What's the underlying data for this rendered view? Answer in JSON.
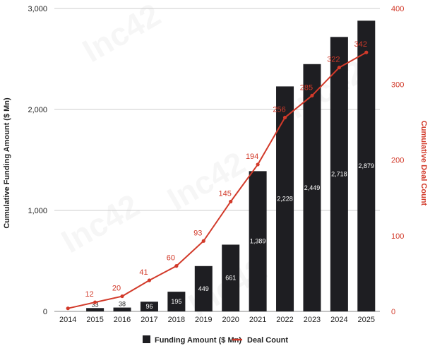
{
  "chart_data": {
    "type": "bar",
    "categories": [
      "2014",
      "2015",
      "2016",
      "2017",
      "2018",
      "2019",
      "2020",
      "2021",
      "2022",
      "2023",
      "2024",
      "2025"
    ],
    "series": [
      {
        "name": "Funding Amount ($ Mn)",
        "type": "bar",
        "axis": "left",
        "values": [
          0,
          33,
          38,
          96,
          195,
          449,
          661,
          1389,
          2228,
          2449,
          2718,
          2879
        ],
        "labels": [
          "",
          "33",
          "38",
          "96",
          "195",
          "449",
          "661",
          "1,389",
          "2,228",
          "2,449",
          "2,718",
          "2,879"
        ]
      },
      {
        "name": "Deal Count",
        "type": "line",
        "axis": "right",
        "values": [
          4,
          12,
          20,
          41,
          60,
          93,
          145,
          194,
          256,
          285,
          322,
          342
        ],
        "labels": [
          "",
          "12",
          "20",
          "41",
          "60",
          "93",
          "145",
          "194",
          "256",
          "285",
          "322",
          "342"
        ]
      }
    ],
    "ylabel": "Cumulative Funding Amount ($ Mn)",
    "y2label": "Cumulative Deal Count",
    "xlabel": "",
    "ylim": [
      0,
      3000
    ],
    "y2lim": [
      0,
      400
    ],
    "yticks": [
      "0",
      "1,000",
      "2,000",
      "3,000"
    ],
    "yticks_values": [
      0,
      1000,
      2000,
      3000
    ],
    "y2ticks": [
      "0",
      "100",
      "200",
      "300",
      "400"
    ],
    "y2ticks_values": [
      0,
      100,
      200,
      300,
      400
    ],
    "legend": [
      "Funding Amount ($ Mn)",
      "Deal Count"
    ],
    "legend_position": "bottom",
    "watermark": "Inc42",
    "colors": {
      "bar": "#1e1e22",
      "line": "#d23a2a",
      "grid": "#cccccc",
      "axis_text": "#222222"
    }
  }
}
